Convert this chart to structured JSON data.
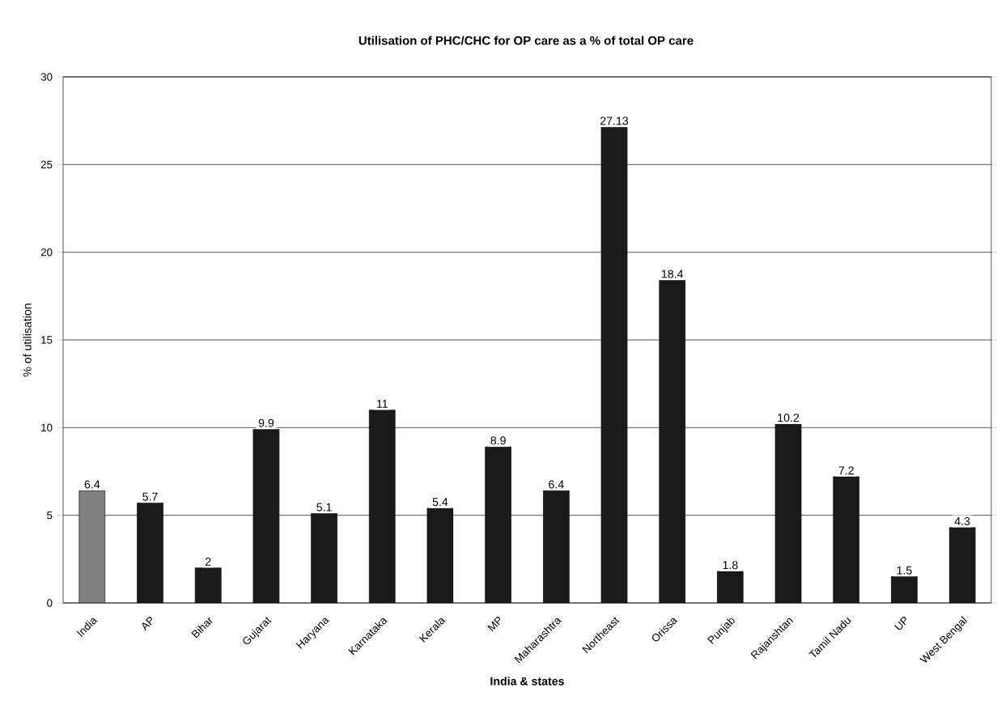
{
  "chart_data": {
    "type": "bar",
    "title": "Utilisation of PHC/CHC for OP care as a % of total OP care",
    "xlabel": "India & states",
    "ylabel": "% of utilisation",
    "categories": [
      "India",
      "AP",
      "Bihar",
      "Gujarat",
      "Haryana",
      "Karnataka",
      "Kerala",
      "MP",
      "Maharashtra",
      "Northeast",
      "Orissa",
      "Punjab",
      "Rajanshtan",
      "Tamil Nadu",
      "UP",
      "West Bengal"
    ],
    "values": [
      6.4,
      5.7,
      2,
      9.9,
      5.1,
      11,
      5.4,
      8.9,
      6.4,
      27.13,
      18.4,
      1.8,
      10.2,
      7.2,
      1.5,
      4.3
    ],
    "colors": [
      "#808080",
      "#1a1a1a",
      "#1a1a1a",
      "#1a1a1a",
      "#1a1a1a",
      "#1a1a1a",
      "#1a1a1a",
      "#1a1a1a",
      "#1a1a1a",
      "#1a1a1a",
      "#1a1a1a",
      "#1a1a1a",
      "#1a1a1a",
      "#1a1a1a",
      "#1a1a1a",
      "#1a1a1a"
    ],
    "ylim": [
      0,
      30
    ],
    "yticks": [
      0,
      5,
      10,
      15,
      20,
      25,
      30
    ],
    "grid": "y",
    "data_labels": true
  }
}
